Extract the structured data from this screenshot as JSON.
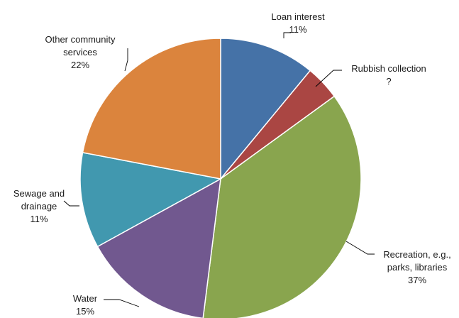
{
  "chart_data": {
    "type": "pie",
    "start_angle_deg": 0,
    "direction": "clockwise",
    "slices": [
      {
        "label_lines": [
          "Loan interest",
          "11%"
        ],
        "value": 11,
        "color": "#4572A7"
      },
      {
        "label_lines": [
          "Rubbish collection",
          "?"
        ],
        "value": 4,
        "value_printed": "?",
        "color": "#AA4643"
      },
      {
        "label_lines": [
          "Recreation, e.g.,",
          "parks, libraries",
          "37%"
        ],
        "value": 37,
        "color": "#89A54E"
      },
      {
        "label_lines": [
          "Water",
          "15%"
        ],
        "value": 15,
        "color": "#71588F"
      },
      {
        "label_lines": [
          "Sewage and",
          "drainage",
          "11%"
        ],
        "value": 11,
        "color": "#4198AF"
      },
      {
        "label_lines": [
          "Other community",
          "services",
          "22%"
        ],
        "value": 22,
        "color": "#DB843D"
      }
    ]
  }
}
